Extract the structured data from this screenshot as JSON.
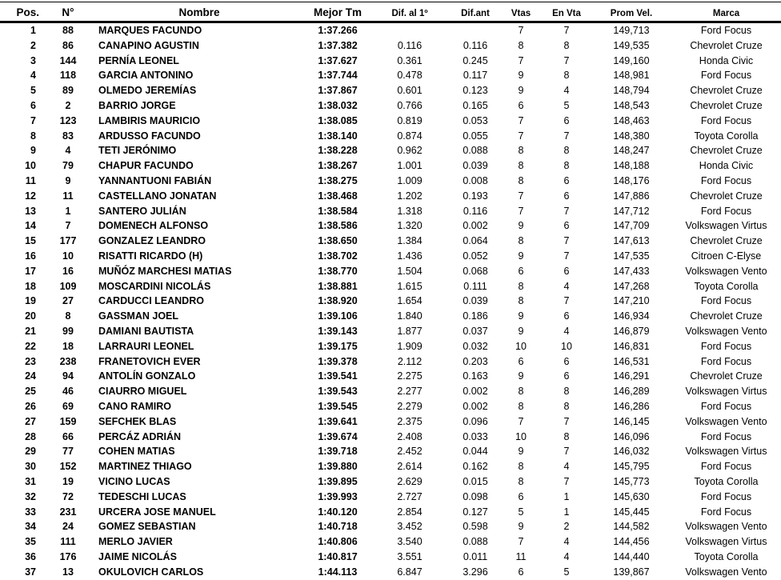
{
  "table": {
    "columns": [
      {
        "key": "pos",
        "label": "Pos."
      },
      {
        "key": "num",
        "label": "N°"
      },
      {
        "key": "nombre",
        "label": "Nombre"
      },
      {
        "key": "mejor",
        "label": "Mejor Tm"
      },
      {
        "key": "dif1",
        "label": "Dif. al 1º"
      },
      {
        "key": "difant",
        "label": "Dif.ant"
      },
      {
        "key": "vtas",
        "label": "Vtas"
      },
      {
        "key": "envta",
        "label": "En Vta"
      },
      {
        "key": "prom",
        "label": "Prom Vel."
      },
      {
        "key": "marca",
        "label": "Marca"
      }
    ],
    "rows": [
      [
        "1",
        "88",
        "MARQUES FACUNDO",
        "1:37.266",
        "",
        "",
        "7",
        "7",
        "149,713",
        "Ford Focus"
      ],
      [
        "2",
        "86",
        "CANAPINO AGUSTIN",
        "1:37.382",
        "0.116",
        "0.116",
        "8",
        "8",
        "149,535",
        "Chevrolet Cruze"
      ],
      [
        "3",
        "144",
        "PERNÍA LEONEL",
        "1:37.627",
        "0.361",
        "0.245",
        "7",
        "7",
        "149,160",
        "Honda Civic"
      ],
      [
        "4",
        "118",
        "GARCIA ANTONINO",
        "1:37.744",
        "0.478",
        "0.117",
        "9",
        "8",
        "148,981",
        "Ford Focus"
      ],
      [
        "5",
        "89",
        "OLMEDO JEREMÍAS",
        "1:37.867",
        "0.601",
        "0.123",
        "9",
        "4",
        "148,794",
        "Chevrolet Cruze"
      ],
      [
        "6",
        "2",
        "BARRIO JORGE",
        "1:38.032",
        "0.766",
        "0.165",
        "6",
        "5",
        "148,543",
        "Chevrolet Cruze"
      ],
      [
        "7",
        "123",
        "LAMBIRIS MAURICIO",
        "1:38.085",
        "0.819",
        "0.053",
        "7",
        "6",
        "148,463",
        "Ford Focus"
      ],
      [
        "8",
        "83",
        "ARDUSSO FACUNDO",
        "1:38.140",
        "0.874",
        "0.055",
        "7",
        "7",
        "148,380",
        "Toyota Corolla"
      ],
      [
        "9",
        "4",
        "TETI JERÓNIMO",
        "1:38.228",
        "0.962",
        "0.088",
        "8",
        "8",
        "148,247",
        "Chevrolet Cruze"
      ],
      [
        "10",
        "79",
        "CHAPUR FACUNDO",
        "1:38.267",
        "1.001",
        "0.039",
        "8",
        "8",
        "148,188",
        "Honda Civic"
      ],
      [
        "11",
        "9",
        "YANNANTUONI FABIÁN",
        "1:38.275",
        "1.009",
        "0.008",
        "8",
        "6",
        "148,176",
        "Ford Focus"
      ],
      [
        "12",
        "11",
        "CASTELLANO JONATAN",
        "1:38.468",
        "1.202",
        "0.193",
        "7",
        "6",
        "147,886",
        "Chevrolet Cruze"
      ],
      [
        "13",
        "1",
        "SANTERO JULIÁN",
        "1:38.584",
        "1.318",
        "0.116",
        "7",
        "7",
        "147,712",
        "Ford Focus"
      ],
      [
        "14",
        "7",
        "DOMENECH ALFONSO",
        "1:38.586",
        "1.320",
        "0.002",
        "9",
        "6",
        "147,709",
        "Volkswagen Virtus"
      ],
      [
        "15",
        "177",
        "GONZALEZ LEANDRO",
        "1:38.650",
        "1.384",
        "0.064",
        "8",
        "7",
        "147,613",
        "Chevrolet Cruze"
      ],
      [
        "16",
        "10",
        "RISATTI RICARDO (H)",
        "1:38.702",
        "1.436",
        "0.052",
        "9",
        "7",
        "147,535",
        "Citroen C-Elyse"
      ],
      [
        "17",
        "16",
        "MUÑÓZ MARCHESI MATIAS",
        "1:38.770",
        "1.504",
        "0.068",
        "6",
        "6",
        "147,433",
        "Volkswagen Vento"
      ],
      [
        "18",
        "109",
        "MOSCARDINI NICOLÁS",
        "1:38.881",
        "1.615",
        "0.111",
        "8",
        "4",
        "147,268",
        "Toyota Corolla"
      ],
      [
        "19",
        "27",
        "CARDUCCI LEANDRO",
        "1:38.920",
        "1.654",
        "0.039",
        "8",
        "7",
        "147,210",
        "Ford Focus"
      ],
      [
        "20",
        "8",
        "GASSMAN JOEL",
        "1:39.106",
        "1.840",
        "0.186",
        "9",
        "6",
        "146,934",
        "Chevrolet Cruze"
      ],
      [
        "21",
        "99",
        "DAMIANI BAUTISTA",
        "1:39.143",
        "1.877",
        "0.037",
        "9",
        "4",
        "146,879",
        "Volkswagen Vento"
      ],
      [
        "22",
        "18",
        "LARRAURI LEONEL",
        "1:39.175",
        "1.909",
        "0.032",
        "10",
        "10",
        "146,831",
        "Ford Focus"
      ],
      [
        "23",
        "238",
        "FRANETOVICH EVER",
        "1:39.378",
        "2.112",
        "0.203",
        "6",
        "6",
        "146,531",
        "Ford Focus"
      ],
      [
        "24",
        "94",
        "ANTOLÍN GONZALO",
        "1:39.541",
        "2.275",
        "0.163",
        "9",
        "6",
        "146,291",
        "Chevrolet Cruze"
      ],
      [
        "25",
        "46",
        "CIAURRO MIGUEL",
        "1:39.543",
        "2.277",
        "0.002",
        "8",
        "8",
        "146,289",
        "Volkswagen Virtus"
      ],
      [
        "26",
        "69",
        "CANO RAMIRO",
        "1:39.545",
        "2.279",
        "0.002",
        "8",
        "8",
        "146,286",
        "Ford Focus"
      ],
      [
        "27",
        "159",
        "SEFCHEK BLAS",
        "1:39.641",
        "2.375",
        "0.096",
        "7",
        "7",
        "146,145",
        "Volkswagen Vento"
      ],
      [
        "28",
        "66",
        "PERCÁZ ADRIÁN",
        "1:39.674",
        "2.408",
        "0.033",
        "10",
        "8",
        "146,096",
        "Ford Focus"
      ],
      [
        "29",
        "77",
        "COHEN MATIAS",
        "1:39.718",
        "2.452",
        "0.044",
        "9",
        "7",
        "146,032",
        "Volkswagen Virtus"
      ],
      [
        "30",
        "152",
        "MARTINEZ THIAGO",
        "1:39.880",
        "2.614",
        "0.162",
        "8",
        "4",
        "145,795",
        "Ford Focus"
      ],
      [
        "31",
        "19",
        "VICINO LUCAS",
        "1:39.895",
        "2.629",
        "0.015",
        "8",
        "7",
        "145,773",
        "Toyota Corolla"
      ],
      [
        "32",
        "72",
        "TEDESCHI LUCAS",
        "1:39.993",
        "2.727",
        "0.098",
        "6",
        "1",
        "145,630",
        "Ford Focus"
      ],
      [
        "33",
        "231",
        "URCERA JOSE MANUEL",
        "1:40.120",
        "2.854",
        "0.127",
        "5",
        "1",
        "145,445",
        "Ford Focus"
      ],
      [
        "34",
        "24",
        "GOMEZ SEBASTIAN",
        "1:40.718",
        "3.452",
        "0.598",
        "9",
        "2",
        "144,582",
        "Volkswagen Vento"
      ],
      [
        "35",
        "111",
        "MERLO JAVIER",
        "1:40.806",
        "3.540",
        "0.088",
        "7",
        "4",
        "144,456",
        "Volkswagen Virtus"
      ],
      [
        "36",
        "176",
        "JAIME NICOLÁS",
        "1:40.817",
        "3.551",
        "0.011",
        "11",
        "4",
        "144,440",
        "Toyota Corolla"
      ],
      [
        "37",
        "13",
        "OKULOVICH CARLOS",
        "1:44.113",
        "6.847",
        "3.296",
        "6",
        "5",
        "139,867",
        "Volkswagen Vento"
      ]
    ]
  }
}
